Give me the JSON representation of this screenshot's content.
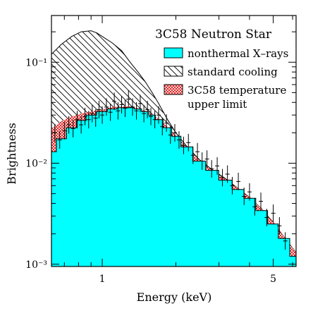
{
  "chart_data": {
    "type": "area",
    "title": "3C58 Neutron Star",
    "xlabel": "Energy (keV)",
    "ylabel": "Brightness",
    "xscale": "log",
    "yscale": "log",
    "xlim": [
      0.62,
      6.2
    ],
    "ylim": [
      0.00095,
      0.29
    ],
    "x_ticks": [
      {
        "value": 1,
        "label": "1"
      },
      {
        "value": 5,
        "label": "5"
      }
    ],
    "y_ticks": [
      {
        "value": 0.1,
        "label": "10⁻¹"
      },
      {
        "value": 0.01,
        "label": "10⁻²"
      },
      {
        "value": 0.001,
        "label": "10⁻³"
      }
    ],
    "legend_position": "top-right",
    "legend": [
      {
        "label": "nonthermal X–rays",
        "swatch": "cyan-fill"
      },
      {
        "label": "standard cooling",
        "swatch": "diagonal-hatch"
      },
      {
        "label": "3C58 temperature",
        "label2": "upper limit",
        "swatch": "red-crosshatch"
      }
    ],
    "colors": {
      "nonthermal": "#00ffff",
      "upper_limit": "#e00000",
      "hatch": "#000000"
    },
    "series": [
      {
        "key": "nonthermal",
        "x": [
          0.62,
          0.68,
          0.75,
          0.82,
          0.9,
          1.0,
          1.1,
          1.2,
          1.3,
          1.4,
          1.5,
          1.6,
          1.7,
          1.85,
          2.0,
          2.2,
          2.5,
          2.8,
          3.2,
          3.6,
          4.0,
          4.5,
          5.0,
          5.5,
          6.2
        ],
        "y": [
          0.013,
          0.0175,
          0.0225,
          0.0265,
          0.03,
          0.0325,
          0.0345,
          0.0355,
          0.0355,
          0.0345,
          0.0325,
          0.03,
          0.027,
          0.0225,
          0.0185,
          0.0145,
          0.0105,
          0.0085,
          0.0068,
          0.0055,
          0.0045,
          0.0034,
          0.0025,
          0.0018,
          0.0012
        ]
      },
      {
        "key": "upper_limit",
        "x": [
          0.62,
          0.68,
          0.75,
          0.82,
          0.9,
          1.0,
          1.1,
          1.2,
          1.3,
          1.4,
          1.5,
          1.6,
          1.7,
          1.85,
          2.0,
          2.2,
          2.5,
          2.8,
          3.2,
          3.6,
          4.0,
          4.5,
          5.0,
          5.5,
          6.2
        ],
        "y": [
          0.022,
          0.026,
          0.029,
          0.031,
          0.0325,
          0.034,
          0.036,
          0.0365,
          0.0365,
          0.035,
          0.033,
          0.0305,
          0.0275,
          0.023,
          0.0187,
          0.0147,
          0.0106,
          0.0086,
          0.0069,
          0.0056,
          0.0046,
          0.0035,
          0.0026,
          0.0019,
          0.0013
        ]
      },
      {
        "key": "standard_cooling",
        "x": [
          0.62,
          0.68,
          0.75,
          0.82,
          0.9,
          0.95,
          1.0,
          1.1,
          1.2,
          1.3,
          1.4,
          1.5,
          1.6,
          1.7,
          1.85,
          2.0,
          2.2,
          2.5,
          2.8,
          3.2,
          3.6,
          4.0,
          4.5,
          5.0,
          5.5,
          6.2
        ],
        "y": [
          0.12,
          0.15,
          0.18,
          0.2,
          0.205,
          0.195,
          0.18,
          0.155,
          0.13,
          0.1,
          0.08,
          0.064,
          0.05,
          0.039,
          0.027,
          0.02,
          0.015,
          0.0108,
          0.0087,
          0.007,
          0.0056,
          0.0046,
          0.0035,
          0.0026,
          0.0019,
          0.0013
        ]
      }
    ],
    "data_points": {
      "x": [
        0.64,
        0.67,
        0.7,
        0.73,
        0.76,
        0.79,
        0.82,
        0.85,
        0.88,
        0.91,
        0.94,
        0.97,
        1.0,
        1.04,
        1.08,
        1.12,
        1.16,
        1.2,
        1.24,
        1.28,
        1.33,
        1.38,
        1.43,
        1.48,
        1.53,
        1.58,
        1.64,
        1.7,
        1.76,
        1.83,
        1.9,
        1.98,
        2.06,
        2.15,
        2.25,
        2.35,
        2.45,
        2.56,
        2.68,
        2.8,
        2.95,
        3.1,
        3.25,
        3.4,
        3.6,
        3.8,
        4.0,
        4.2,
        4.45,
        4.7,
        5.0,
        5.3,
        5.6
      ],
      "y": [
        0.02,
        0.017,
        0.021,
        0.024,
        0.022,
        0.027,
        0.024,
        0.029,
        0.027,
        0.031,
        0.028,
        0.034,
        0.03,
        0.036,
        0.032,
        0.041,
        0.033,
        0.038,
        0.035,
        0.043,
        0.036,
        0.033,
        0.039,
        0.031,
        0.034,
        0.029,
        0.027,
        0.03,
        0.023,
        0.025,
        0.019,
        0.02,
        0.017,
        0.015,
        0.016,
        0.012,
        0.013,
        0.0105,
        0.011,
        0.0088,
        0.0094,
        0.0072,
        0.0078,
        0.006,
        0.0066,
        0.0047,
        0.0052,
        0.0037,
        0.0042,
        0.0029,
        0.0032,
        0.0024,
        0.0017
      ]
    }
  }
}
